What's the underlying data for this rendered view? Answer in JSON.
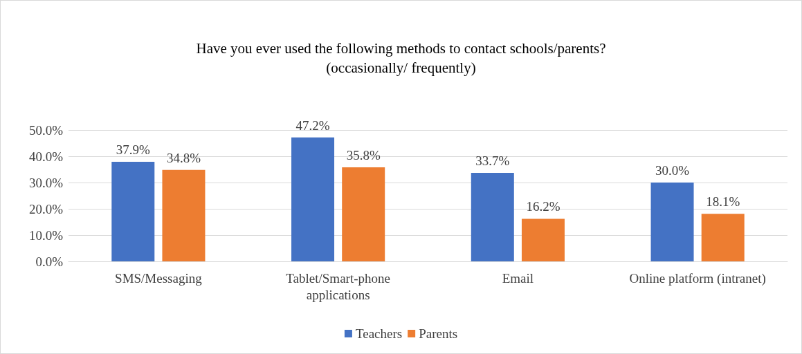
{
  "chart_data": {
    "type": "bar",
    "title": "Have you ever used the following methods to contact schools/parents?\n(occasionally/ frequently)",
    "categories": [
      "SMS/Messaging",
      "Tablet/Smart-phone\napplications",
      "Email",
      "Online platform (intranet)"
    ],
    "series": [
      {
        "name": "Teachers",
        "color": "#4472c4",
        "values": [
          37.9,
          47.2,
          33.7,
          30.0
        ],
        "value_labels": [
          "37.9%",
          "47.2%",
          "33.7%",
          "30.0%"
        ]
      },
      {
        "name": "Parents",
        "color": "#ed7d31",
        "values": [
          34.8,
          35.8,
          16.2,
          18.1
        ],
        "value_labels": [
          "34.8%",
          "35.8%",
          "16.2%",
          "18.1%"
        ]
      }
    ],
    "ylim": [
      0,
      50
    ],
    "yticks": [
      {
        "value": 0,
        "label": "0.0%"
      },
      {
        "value": 10,
        "label": "10.0%"
      },
      {
        "value": 20,
        "label": "20.0%"
      },
      {
        "value": 30,
        "label": "30.0%"
      },
      {
        "value": 40,
        "label": "40.0%"
      },
      {
        "value": 50,
        "label": "50.0%"
      }
    ],
    "grid": "y",
    "legend": "bottom"
  }
}
